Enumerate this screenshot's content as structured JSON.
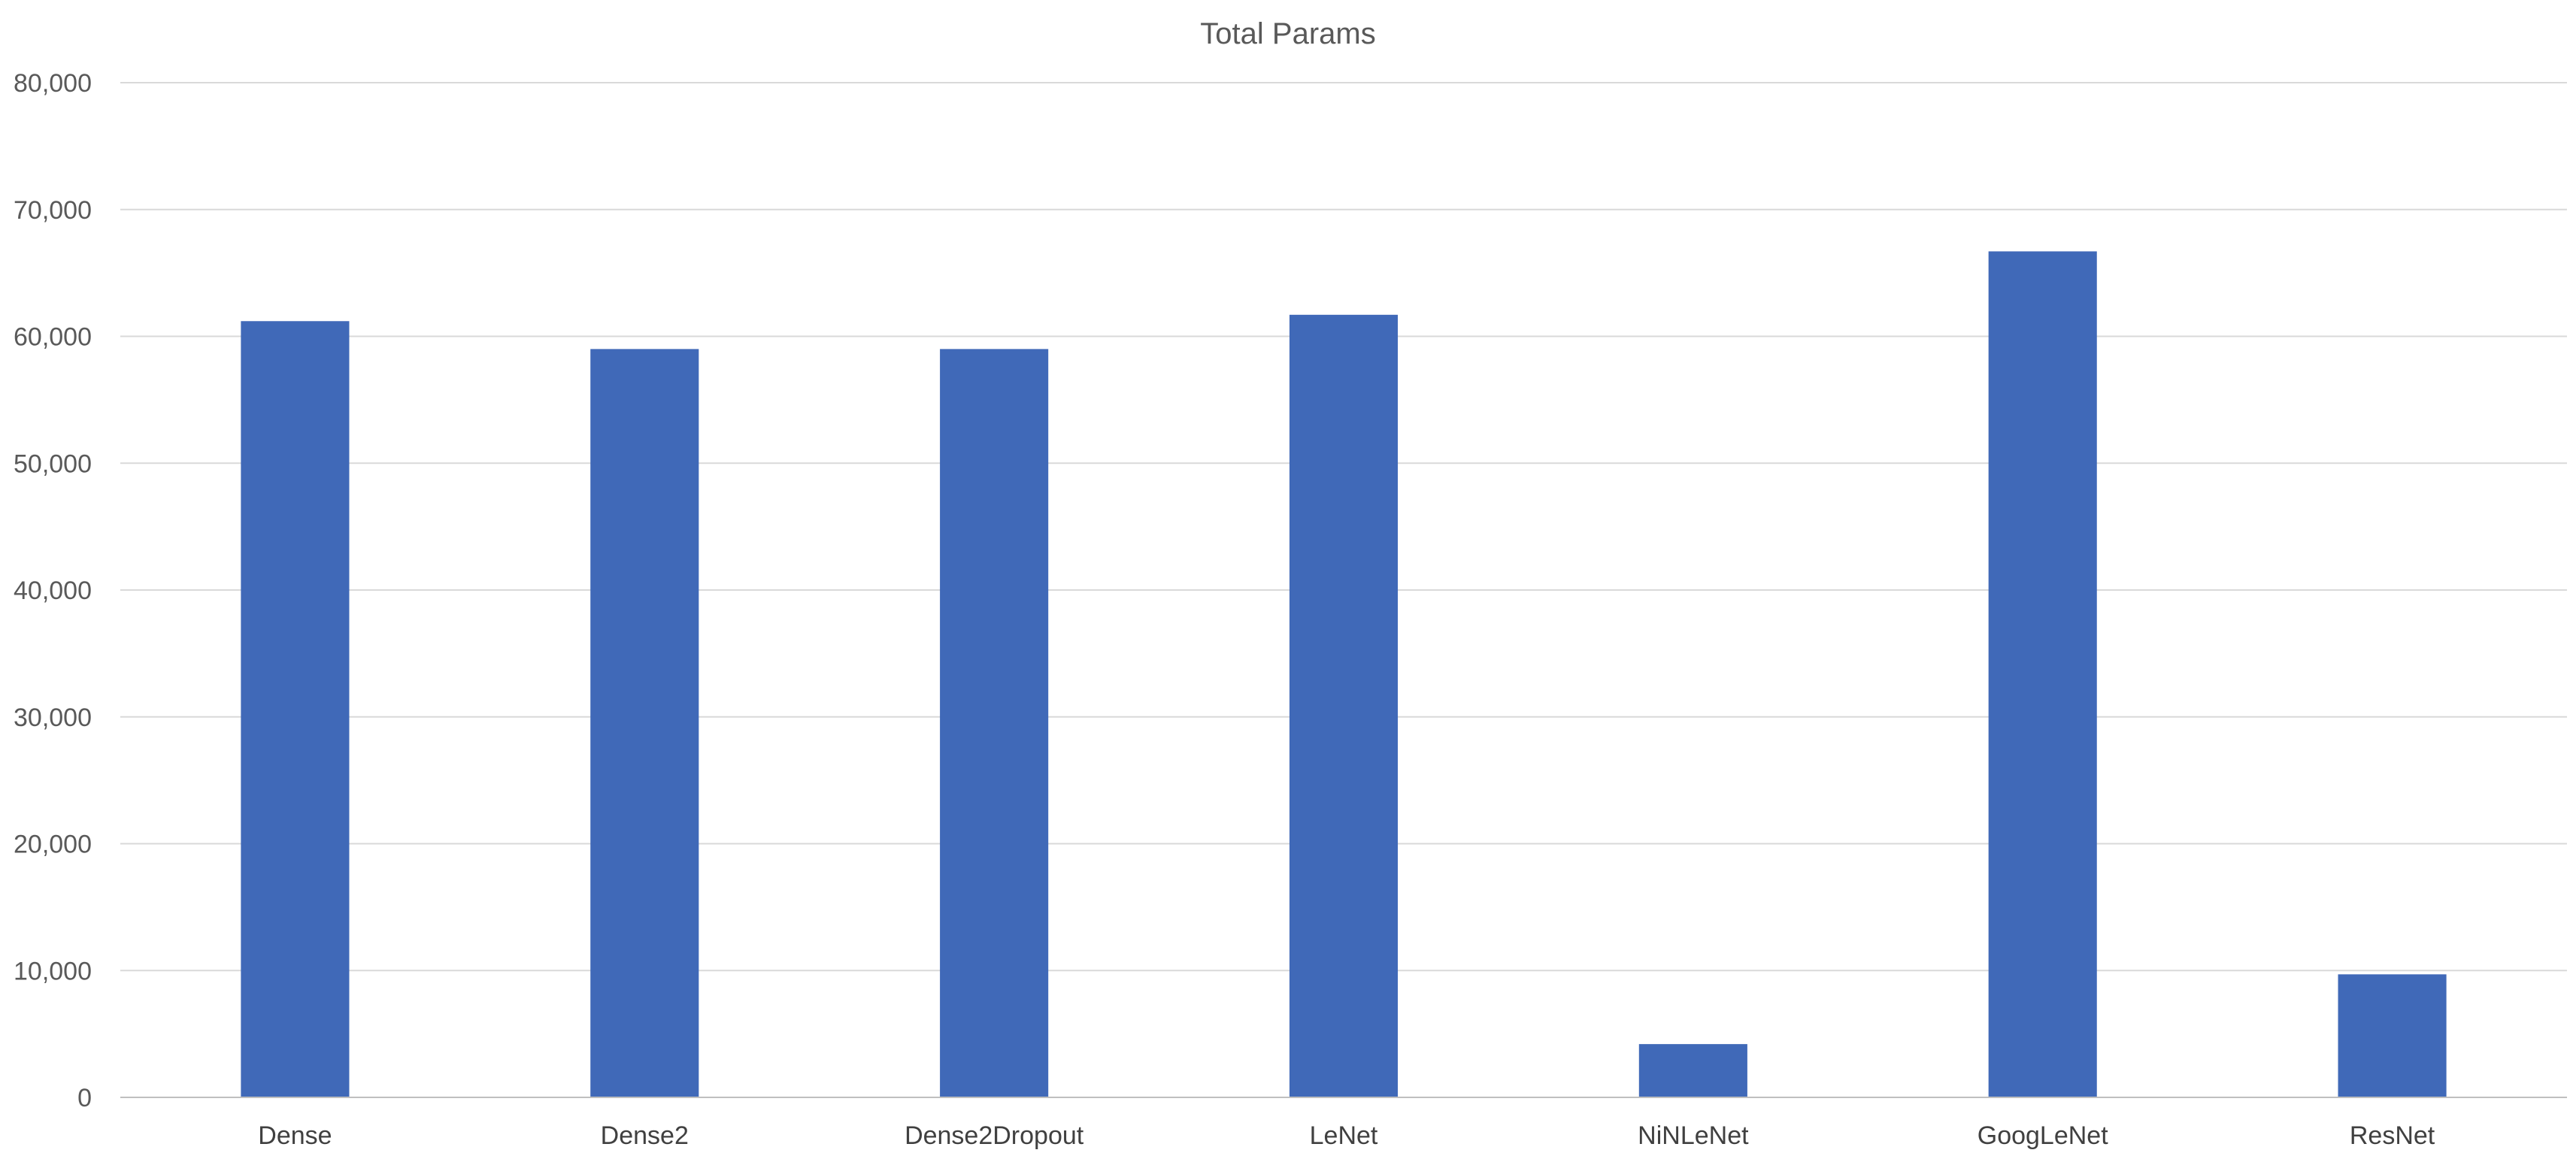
{
  "chart_data": {
    "type": "bar",
    "title": "Total Params",
    "xlabel": "",
    "ylabel": "",
    "categories": [
      "Dense",
      "Dense2",
      "Dense2Dropout",
      "LeNet",
      "NiNLeNet",
      "GoogLeNet",
      "ResNet"
    ],
    "values": [
      61200,
      59000,
      59000,
      61700,
      4200,
      66700,
      9700
    ],
    "ylim": [
      0,
      80000
    ],
    "y_ticks": [
      0,
      10000,
      20000,
      30000,
      40000,
      50000,
      60000,
      70000,
      80000
    ],
    "y_tick_labels": [
      "0",
      "10,000",
      "20,000",
      "30,000",
      "40,000",
      "50,000",
      "60,000",
      "70,000",
      "80,000"
    ],
    "grid": true,
    "legend": "none",
    "bar_color": "#4069b8"
  }
}
